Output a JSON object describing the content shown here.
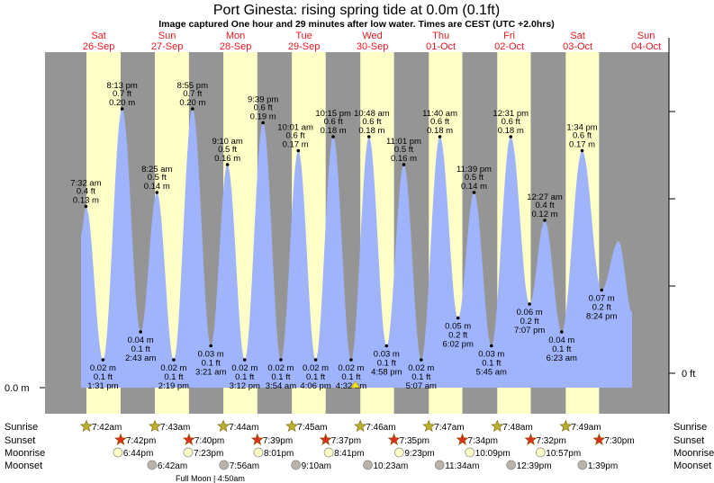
{
  "header": {
    "title": "Port Ginesta: rising  spring tide at 0.0m (0.1ft)",
    "subtitle": "Image captured One hour and 29 minutes after low water. Times are CEST (UTC +2.0hrs)"
  },
  "colors": {
    "night": "#959595",
    "day": "#ffffc8",
    "tide": "#a0b4fd",
    "day_label": "#e8191e",
    "sunrise": "#b8b030",
    "sunset": "#d83020",
    "moonrise": "#ffffc8",
    "moonset": "#b8b4a8"
  },
  "axis": {
    "left_label": "0.0 m",
    "right_label": "0 ft"
  },
  "rows": {
    "sunrise_label": "Sunrise",
    "sunset_label": "Sunset",
    "moonrise_label": "Moonrise",
    "moonset_label": "Moonset",
    "full_moon": "Full Moon | 4:50am"
  },
  "chart_data": {
    "type": "area",
    "title": "Port Ginesta: rising  spring tide at 0.0m (0.1ft)",
    "units": [
      "m",
      "ft"
    ],
    "current_marker": {
      "day_index": 4,
      "time": "6:01 am"
    },
    "days": [
      {
        "name": "Sat",
        "date": "26-Sep",
        "sunrise": "7:42am",
        "sunset": "7:42pm",
        "moonrise": "6:44pm",
        "moonset": "",
        "tides": [
          {
            "time": "7:32 am",
            "m": "0.13 m",
            "ft": "0.4 ft",
            "h": 0.13,
            "type": "high"
          },
          {
            "time": "1:31 pm",
            "m": "0.02 m",
            "ft": "0.1 ft",
            "h": 0.02,
            "type": "low"
          },
          {
            "time": "8:13 pm",
            "m": "0.20 m",
            "ft": "0.7 ft",
            "h": 0.2,
            "type": "high"
          }
        ]
      },
      {
        "name": "Sun",
        "date": "27-Sep",
        "sunrise": "7:43am",
        "sunset": "7:40pm",
        "moonrise": "7:23pm",
        "moonset": "6:42am",
        "tides": [
          {
            "time": "2:43 am",
            "m": "0.04 m",
            "ft": "0.1 ft",
            "h": 0.04,
            "type": "low"
          },
          {
            "time": "8:25 am",
            "m": "0.14 m",
            "ft": "0.5 ft",
            "h": 0.14,
            "type": "high"
          },
          {
            "time": "2:19 pm",
            "m": "0.02 m",
            "ft": "0.1 ft",
            "h": 0.02,
            "type": "low"
          },
          {
            "time": "8:55 pm",
            "m": "0.20 m",
            "ft": "0.7 ft",
            "h": 0.2,
            "type": "high"
          }
        ]
      },
      {
        "name": "Mon",
        "date": "28-Sep",
        "sunrise": "7:44am",
        "sunset": "7:39pm",
        "moonrise": "8:01pm",
        "moonset": "7:56am",
        "tides": [
          {
            "time": "3:21 am",
            "m": "0.03 m",
            "ft": "0.1 ft",
            "h": 0.03,
            "type": "low"
          },
          {
            "time": "9:10 am",
            "m": "0.16 m",
            "ft": "0.5 ft",
            "h": 0.16,
            "type": "high"
          },
          {
            "time": "3:12 pm",
            "m": "0.02 m",
            "ft": "0.1 ft",
            "h": 0.02,
            "type": "low"
          },
          {
            "time": "9:39 pm",
            "m": "0.19 m",
            "ft": "0.6 ft",
            "h": 0.19,
            "type": "high"
          }
        ]
      },
      {
        "name": "Tue",
        "date": "29-Sep",
        "sunrise": "7:45am",
        "sunset": "7:37pm",
        "moonrise": "8:41pm",
        "moonset": "9:10am",
        "tides": [
          {
            "time": "3:54 am",
            "m": "0.02 m",
            "ft": "0.1 ft",
            "h": 0.02,
            "type": "low"
          },
          {
            "time": "10:01 am",
            "m": "0.17 m",
            "ft": "0.6 ft",
            "h": 0.17,
            "type": "high"
          },
          {
            "time": "4:06 pm",
            "m": "0.02 m",
            "ft": "0.1 ft",
            "h": 0.02,
            "type": "low"
          },
          {
            "time": "10:15 pm",
            "m": "0.18 m",
            "ft": "0.6 ft",
            "h": 0.18,
            "type": "high"
          }
        ]
      },
      {
        "name": "Wed",
        "date": "30-Sep",
        "sunrise": "7:46am",
        "sunset": "7:35pm",
        "moonrise": "9:23pm",
        "moonset": "10:23am",
        "tides": [
          {
            "time": "4:32 am",
            "m": "0.02 m",
            "ft": "0.1 ft",
            "h": 0.02,
            "type": "low"
          },
          {
            "time": "10:48 am",
            "m": "0.18 m",
            "ft": "0.6 ft",
            "h": 0.18,
            "type": "high"
          },
          {
            "time": "4:58 pm",
            "m": "0.03 m",
            "ft": "0.1 ft",
            "h": 0.03,
            "type": "low"
          },
          {
            "time": "11:01 pm",
            "m": "0.16 m",
            "ft": "0.5 ft",
            "h": 0.16,
            "type": "high"
          }
        ]
      },
      {
        "name": "Thu",
        "date": "01-Oct",
        "sunrise": "7:47am",
        "sunset": "7:34pm",
        "moonrise": "10:09pm",
        "moonset": "11:34am",
        "tides": [
          {
            "time": "5:07 am",
            "m": "0.02 m",
            "ft": "0.1 ft",
            "h": 0.02,
            "type": "low"
          },
          {
            "time": "11:40 am",
            "m": "0.18 m",
            "ft": "0.6 ft",
            "h": 0.18,
            "type": "high"
          },
          {
            "time": "6:02 pm",
            "m": "0.05 m",
            "ft": "0.2 ft",
            "h": 0.05,
            "type": "low"
          },
          {
            "time": "11:39 pm",
            "m": "0.14 m",
            "ft": "0.5 ft",
            "h": 0.14,
            "type": "high"
          }
        ]
      },
      {
        "name": "Fri",
        "date": "02-Oct",
        "sunrise": "7:48am",
        "sunset": "7:32pm",
        "moonrise": "10:57pm",
        "moonset": "12:39pm",
        "tides": [
          {
            "time": "5:45 am",
            "m": "0.03 m",
            "ft": "0.1 ft",
            "h": 0.03,
            "type": "low"
          },
          {
            "time": "12:31 pm",
            "m": "0.18 m",
            "ft": "0.6 ft",
            "h": 0.18,
            "type": "high"
          },
          {
            "time": "7:07 pm",
            "m": "0.06 m",
            "ft": "0.2 ft",
            "h": 0.06,
            "type": "low"
          }
        ]
      },
      {
        "name": "Sat",
        "date": "03-Oct",
        "sunrise": "7:49am",
        "sunset": "7:30pm",
        "moonrise": "",
        "moonset": "1:39pm",
        "tides": [
          {
            "time": "12:27 am",
            "m": "0.12 m",
            "ft": "0.4 ft",
            "h": 0.12,
            "type": "high"
          },
          {
            "time": "6:23 am",
            "m": "0.04 m",
            "ft": "0.1 ft",
            "h": 0.04,
            "type": "low"
          },
          {
            "time": "1:34 pm",
            "m": "0.17 m",
            "ft": "0.6 ft",
            "h": 0.17,
            "type": "high"
          },
          {
            "time": "8:24 pm",
            "m": "0.07 m",
            "ft": "0.2 ft",
            "h": 0.07,
            "type": "low"
          }
        ]
      },
      {
        "name": "Sun",
        "date": "04-Oct",
        "sunrise": "",
        "sunset": "",
        "moonrise": "",
        "moonset": "",
        "tides": []
      }
    ]
  }
}
